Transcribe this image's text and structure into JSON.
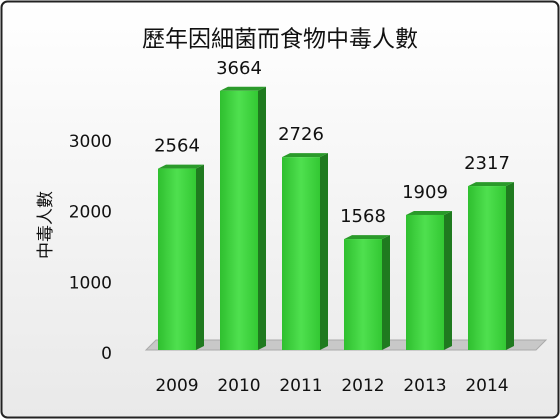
{
  "chart_data": {
    "type": "bar3d",
    "title": "歷年因細菌而食物中毒人數",
    "y_label": "中毒人數",
    "categories": [
      "2009",
      "2010",
      "2011",
      "2012",
      "2013",
      "2014"
    ],
    "values": [
      2564,
      3664,
      2726,
      1568,
      1909,
      2317
    ],
    "color": "#3ecf3e",
    "ylim": [
      0,
      4000
    ],
    "yticks": [
      0,
      1000,
      2000,
      3000
    ]
  }
}
